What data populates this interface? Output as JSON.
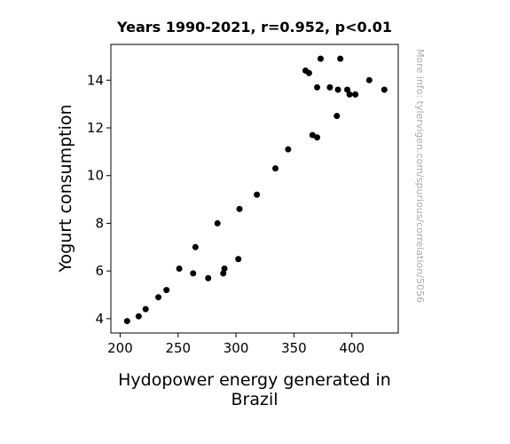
{
  "chart_data": {
    "type": "scatter",
    "title": "Years 1990-2021, r=0.952, p<0.01",
    "xlabel_lines": [
      "Hydopower energy generated in",
      "Brazil"
    ],
    "ylabel": "Yogurt consumption",
    "side_note": "More info: tylervigen.com/spurious/correlation/5056",
    "xlim": [
      192,
      440
    ],
    "ylim": [
      3.4,
      15.5
    ],
    "x_ticks": [
      200,
      250,
      300,
      350,
      400
    ],
    "y_ticks": [
      4,
      6,
      8,
      10,
      12,
      14
    ],
    "grid": false,
    "point_color": "#000000",
    "points": [
      {
        "x": 206,
        "y": 3.9
      },
      {
        "x": 216,
        "y": 4.1
      },
      {
        "x": 222,
        "y": 4.4
      },
      {
        "x": 233,
        "y": 4.9
      },
      {
        "x": 240,
        "y": 5.2
      },
      {
        "x": 251,
        "y": 6.1
      },
      {
        "x": 263,
        "y": 5.9
      },
      {
        "x": 265,
        "y": 7.0
      },
      {
        "x": 276,
        "y": 5.7
      },
      {
        "x": 284,
        "y": 8.0
      },
      {
        "x": 289,
        "y": 5.9
      },
      {
        "x": 290,
        "y": 6.1
      },
      {
        "x": 302,
        "y": 6.5
      },
      {
        "x": 303,
        "y": 8.6
      },
      {
        "x": 318,
        "y": 9.2
      },
      {
        "x": 334,
        "y": 10.3
      },
      {
        "x": 345,
        "y": 11.1
      },
      {
        "x": 360,
        "y": 14.4
      },
      {
        "x": 363,
        "y": 14.3
      },
      {
        "x": 366,
        "y": 11.7
      },
      {
        "x": 370,
        "y": 11.6
      },
      {
        "x": 370,
        "y": 13.7
      },
      {
        "x": 373,
        "y": 14.9
      },
      {
        "x": 381,
        "y": 13.7
      },
      {
        "x": 387,
        "y": 12.5
      },
      {
        "x": 388,
        "y": 13.6
      },
      {
        "x": 390,
        "y": 14.9
      },
      {
        "x": 396,
        "y": 13.6
      },
      {
        "x": 398,
        "y": 13.4
      },
      {
        "x": 403,
        "y": 13.4
      },
      {
        "x": 415,
        "y": 14.0
      },
      {
        "x": 428,
        "y": 13.6
      }
    ]
  }
}
